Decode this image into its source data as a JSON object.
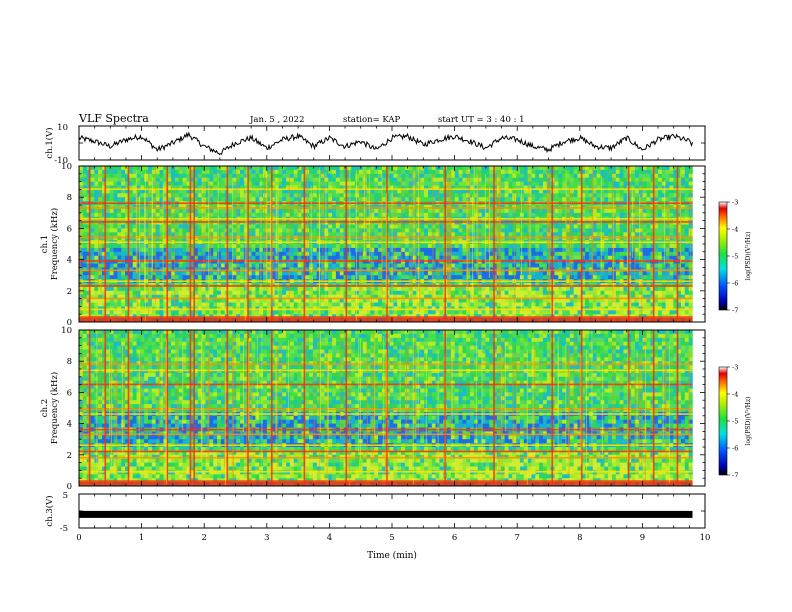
{
  "header": {
    "title": "VLF Spectra",
    "date": "Jan. 5 , 2022",
    "station": "station= KAP",
    "start": "start UT = 3 : 40 : 1"
  },
  "chart_data": [
    {
      "type": "line",
      "panel": "ch1-waveform",
      "ylabel": "ch.1(V)",
      "ylim": [
        -10,
        10
      ],
      "yticks": [
        "10",
        "-10"
      ],
      "xlim": [
        0,
        10
      ],
      "x": [
        0,
        0.25,
        0.5,
        0.75,
        1.0,
        1.25,
        1.5,
        1.75,
        2.0,
        2.25,
        2.5,
        2.75,
        3.0,
        3.25,
        3.5,
        3.75,
        4.0,
        4.25,
        4.5,
        4.75,
        5.0,
        5.25,
        5.5,
        5.75,
        6.0,
        6.25,
        6.5,
        6.75,
        7.0,
        7.25,
        7.5,
        7.75,
        8.0,
        8.25,
        8.5,
        8.75,
        9.0,
        9.25,
        9.5,
        9.75,
        9.8
      ],
      "values": [
        3,
        1,
        -2,
        2,
        4,
        -4,
        0,
        5,
        -2,
        -6,
        0,
        3,
        -3,
        2,
        4,
        -2,
        3,
        -2,
        1,
        -4,
        3,
        4,
        -1,
        2,
        4,
        1,
        -3,
        3,
        2,
        -2,
        -4,
        1,
        3,
        -2,
        -3,
        3,
        -4,
        2,
        4,
        1,
        -1
      ],
      "color": "#000000"
    },
    {
      "type": "heatmap",
      "panel": "ch1-spectrogram",
      "ylabel": "ch.1\nFrequency (kHz)",
      "yticks": [
        "0",
        "2",
        "4",
        "6",
        "8",
        "10"
      ],
      "ylim": [
        0,
        10
      ],
      "xlim": [
        0,
        10
      ],
      "colorbar": {
        "label": "log(PSD)(V²/Hz)",
        "ticks": [
          "-3",
          "-4",
          "-5",
          "-6",
          "-7"
        ],
        "range": [
          -7,
          -3
        ]
      },
      "bands_khz": [
        0.3,
        0.8,
        1.5,
        2.3,
        2.6,
        3.3,
        3.9,
        5.1,
        5.4,
        6.4,
        6.6,
        7.3,
        7.6,
        8.5
      ],
      "bursts_min": [
        0.17,
        0.42,
        0.79,
        1.41,
        1.78,
        1.84,
        2.37,
        2.7,
        3.08,
        3.6,
        4.27,
        4.92,
        5.85,
        6.63,
        7.56,
        8.03,
        8.78,
        9.18,
        9.56
      ]
    },
    {
      "type": "heatmap",
      "panel": "ch2-spectrogram",
      "ylabel": "ch.2\nFrequency (kHz)",
      "yticks": [
        "0",
        "2",
        "4",
        "6",
        "8",
        "10"
      ],
      "ylim": [
        0,
        10
      ],
      "xlim": [
        0,
        10
      ],
      "colorbar": {
        "label": "log(PSD)(V²/Hz)",
        "ticks": [
          "-3",
          "-4",
          "-5",
          "-6",
          "-7"
        ],
        "range": [
          -7,
          -3
        ]
      },
      "bands_khz": [
        0.3,
        0.9,
        1.8,
        2.2,
        2.6,
        3.3,
        3.6,
        4.6,
        4.9,
        6.5,
        7.4,
        7.8
      ],
      "bursts_min": [
        0.17,
        0.42,
        0.79,
        1.41,
        1.78,
        1.84,
        2.37,
        2.7,
        3.08,
        3.6,
        4.27,
        4.92,
        5.85,
        6.63,
        7.56,
        8.03,
        8.78,
        9.18,
        9.56
      ]
    },
    {
      "type": "line",
      "panel": "ch3-waveform",
      "ylabel": "ch.3(V)",
      "ylim": [
        -5,
        5
      ],
      "yticks": [
        "5",
        "-5"
      ],
      "xlim": [
        0,
        10
      ],
      "x": [
        0,
        9.8
      ],
      "values": [
        -1,
        -1
      ],
      "color": "#000000"
    }
  ],
  "x_axis": {
    "label": "Time (min)",
    "ticks": [
      "0",
      "1",
      "2",
      "3",
      "4",
      "5",
      "6",
      "7",
      "8",
      "9",
      "10"
    ]
  }
}
